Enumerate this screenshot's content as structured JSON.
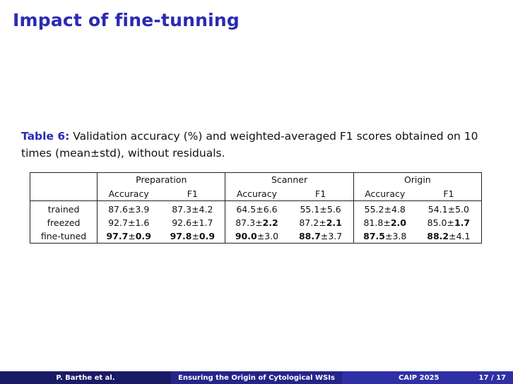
{
  "slide": {
    "title": "Impact of fine-tunning"
  },
  "caption": {
    "label": "Table 6:",
    "text": " Validation accuracy (%) and weighted-averaged F1 scores obtained on 10 times (mean±std), without residuals."
  },
  "table": {
    "groups": [
      "Preparation",
      "Scanner",
      "Origin"
    ],
    "metrics": [
      "Accuracy",
      "F1"
    ],
    "rows": [
      {
        "label": "trained",
        "cells": [
          {
            "mean": "87.6",
            "std": "3.9",
            "bold_mean": false,
            "bold_std": false
          },
          {
            "mean": "87.3",
            "std": "4.2",
            "bold_mean": false,
            "bold_std": false
          },
          {
            "mean": "64.5",
            "std": "6.6",
            "bold_mean": false,
            "bold_std": false
          },
          {
            "mean": "55.1",
            "std": "5.6",
            "bold_mean": false,
            "bold_std": false
          },
          {
            "mean": "55.2",
            "std": "4.8",
            "bold_mean": false,
            "bold_std": false
          },
          {
            "mean": "54.1",
            "std": "5.0",
            "bold_mean": false,
            "bold_std": false
          }
        ]
      },
      {
        "label": "freezed",
        "cells": [
          {
            "mean": "92.7",
            "std": "1.6",
            "bold_mean": false,
            "bold_std": false
          },
          {
            "mean": "92.6",
            "std": "1.7",
            "bold_mean": false,
            "bold_std": false
          },
          {
            "mean": "87.3",
            "std": "2.2",
            "bold_mean": false,
            "bold_std": true
          },
          {
            "mean": "87.2",
            "std": "2.1",
            "bold_mean": false,
            "bold_std": true
          },
          {
            "mean": "81.8",
            "std": "2.0",
            "bold_mean": false,
            "bold_std": true
          },
          {
            "mean": "85.0",
            "std": "1.7",
            "bold_mean": false,
            "bold_std": true
          }
        ]
      },
      {
        "label": "fine-tuned",
        "cells": [
          {
            "mean": "97.7",
            "std": "0.9",
            "bold_mean": true,
            "bold_std": true
          },
          {
            "mean": "97.8",
            "std": "0.9",
            "bold_mean": true,
            "bold_std": true
          },
          {
            "mean": "90.0",
            "std": "3.0",
            "bold_mean": true,
            "bold_std": false
          },
          {
            "mean": "88.7",
            "std": "3.7",
            "bold_mean": true,
            "bold_std": false
          },
          {
            "mean": "87.5",
            "std": "3.8",
            "bold_mean": true,
            "bold_std": false
          },
          {
            "mean": "88.2",
            "std": "4.1",
            "bold_mean": true,
            "bold_std": false
          }
        ]
      }
    ]
  },
  "footer": {
    "author": "P. Barthe et al.",
    "short_title": "Ensuring the Origin of Cytological WSIs",
    "venue": "CAIP 2025",
    "page": "17 / 17"
  }
}
